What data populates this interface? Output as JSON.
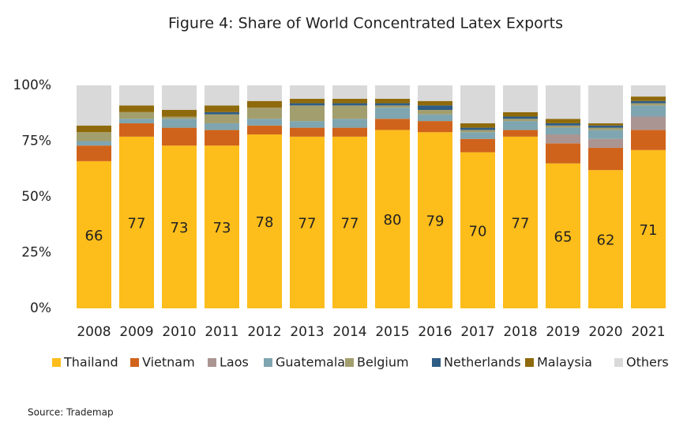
{
  "chart_data": {
    "type": "stacked-bar",
    "title": "Figure 4: Share of World Concentrated Latex Exports",
    "categories": [
      "2008",
      "2009",
      "2010",
      "2011",
      "2012",
      "2013",
      "2014",
      "2015",
      "2016",
      "2017",
      "2018",
      "2019",
      "2020",
      "2021"
    ],
    "series": [
      {
        "name": "Thailand",
        "color": "#fdbd1b",
        "values": [
          66,
          77,
          73,
          73,
          78,
          77,
          77,
          80,
          79,
          70,
          77,
          65,
          62,
          71
        ]
      },
      {
        "name": "Vietnam",
        "color": "#d0631b",
        "values": [
          7,
          6,
          8,
          7,
          4,
          4,
          4,
          5,
          5,
          6,
          3,
          9,
          10,
          9
        ]
      },
      {
        "name": "Laos",
        "color": "#ab9592",
        "values": [
          0,
          0,
          0,
          0,
          0,
          0,
          0,
          0,
          0,
          0,
          0,
          4,
          4,
          6
        ]
      },
      {
        "name": "Guatemala",
        "color": "#7fa5b0",
        "values": [
          2,
          2,
          4,
          3,
          3,
          3,
          4,
          5,
          3,
          3,
          4,
          3,
          4,
          5
        ]
      },
      {
        "name": "Belgium",
        "color": "#a39e6d",
        "values": [
          4,
          3,
          1,
          4,
          5,
          7,
          6,
          1,
          2,
          1,
          1,
          1,
          1,
          1
        ]
      },
      {
        "name": "Netherlands",
        "color": "#2e5d86",
        "values": [
          0,
          0,
          0,
          1,
          0,
          1,
          1,
          1,
          2,
          1,
          1,
          1,
          1,
          1
        ]
      },
      {
        "name": "Malaysia",
        "color": "#8f6a0c",
        "values": [
          3,
          3,
          3,
          3,
          3,
          2,
          2,
          2,
          2,
          2,
          2,
          2,
          1,
          2
        ]
      },
      {
        "name": "Others",
        "color": "#d9d9d9",
        "values": [
          18,
          9,
          11,
          9,
          7,
          6,
          6,
          6,
          7,
          17,
          12,
          15,
          17,
          5
        ]
      }
    ],
    "ylim": [
      0,
      100
    ],
    "yticks": [
      {
        "value": 0,
        "label": "0%"
      },
      {
        "value": 25,
        "label": "25%"
      },
      {
        "value": 50,
        "label": "50%"
      },
      {
        "value": 75,
        "label": "75%"
      },
      {
        "value": 100,
        "label": "100%"
      }
    ],
    "grid": false,
    "legend": "bottom",
    "source": "Source: Trademap"
  }
}
